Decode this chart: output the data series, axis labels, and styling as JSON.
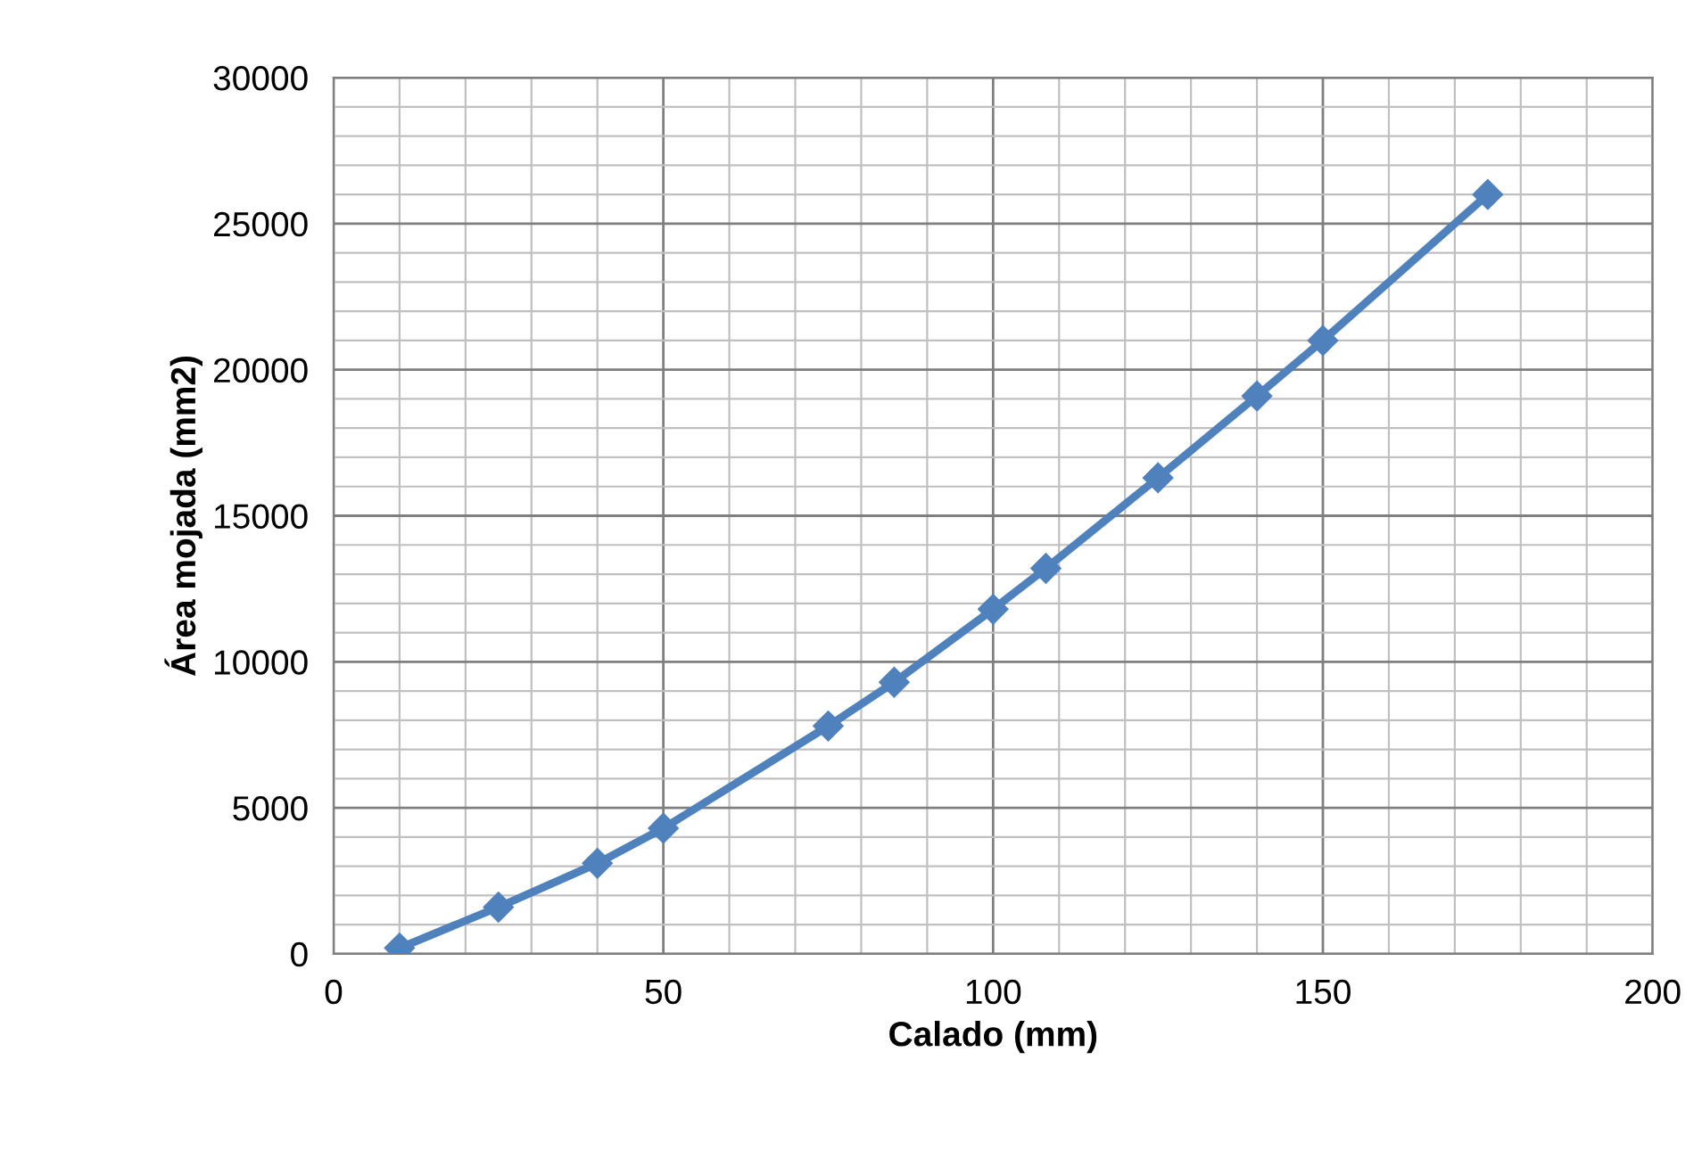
{
  "chart_data": {
    "type": "line",
    "xlabel": "Calado (mm)",
    "ylabel": "Área mojada (mm2)",
    "x": [
      10,
      25,
      40,
      50,
      75,
      85,
      100,
      108,
      125,
      140,
      150,
      175
    ],
    "series": [
      {
        "color": "#4f81bd",
        "values": [
          200,
          1600,
          3100,
          4300,
          7800,
          9300,
          11800,
          13200,
          16300,
          19100,
          21000,
          26000
        ]
      }
    ],
    "xlim": [
      0,
      200
    ],
    "xticks": [
      0,
      {
        "value": 10,
        "label": null
      },
      {
        "value": 20,
        "label": null
      },
      {
        "value": 30,
        "label": null
      },
      {
        "value": 40,
        "label": null
      },
      50,
      {
        "value": 60,
        "label": null
      },
      {
        "value": 70,
        "label": null
      },
      {
        "value": 80,
        "label": null
      },
      {
        "value": 90,
        "label": null
      },
      100,
      {
        "value": 110,
        "label": null
      },
      {
        "value": 120,
        "label": null
      },
      {
        "value": 130,
        "label": null
      },
      {
        "value": 140,
        "label": null
      },
      150,
      {
        "value": 160,
        "label": null
      },
      {
        "value": 170,
        "label": null
      },
      {
        "value": 180,
        "label": null
      },
      {
        "value": 190,
        "label": null
      },
      200
    ],
    "ylim": [
      0,
      30000
    ],
    "yticks": [
      0,
      {
        "value": 1000,
        "label": null
      },
      {
        "value": 2000,
        "label": null
      },
      {
        "value": 3000,
        "label": null
      },
      {
        "value": 4000,
        "label": null
      },
      5000,
      {
        "value": 6000,
        "label": null
      },
      {
        "value": 7000,
        "label": null
      },
      {
        "value": 8000,
        "label": null
      },
      {
        "value": 9000,
        "label": null
      },
      10000,
      {
        "value": 11000,
        "label": null
      },
      {
        "value": 12000,
        "label": null
      },
      {
        "value": 13000,
        "label": null
      },
      {
        "value": 14000,
        "label": null
      },
      15000,
      {
        "value": 16000,
        "label": null
      },
      {
        "value": 17000,
        "label": null
      },
      {
        "value": 18000,
        "label": null
      },
      {
        "value": 19000,
        "label": null
      },
      20000,
      {
        "value": 21000,
        "label": null
      },
      {
        "value": 22000,
        "label": null
      },
      {
        "value": 23000,
        "label": null
      },
      {
        "value": 24000,
        "label": null
      },
      25000,
      {
        "value": 26000,
        "label": null
      },
      {
        "value": 27000,
        "label": null
      },
      {
        "value": 28000,
        "label": null
      },
      {
        "value": 29000,
        "label": null
      },
      30000
    ],
    "grid": true,
    "marker": "diamond",
    "line_style": "solid"
  }
}
